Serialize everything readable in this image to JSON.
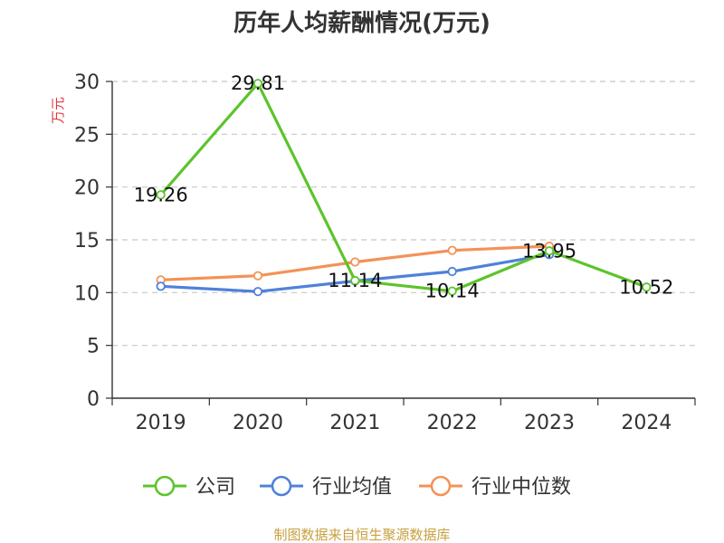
{
  "chart_data": {
    "type": "line",
    "title": "历年人均薪酬情况(万元)",
    "ylabel": "万元",
    "xlabel": "",
    "categories": [
      "2019",
      "2020",
      "2021",
      "2022",
      "2023",
      "2024"
    ],
    "yticks": [
      "0",
      "5",
      "10",
      "15",
      "20",
      "25",
      "30"
    ],
    "ylim": [
      0,
      30
    ],
    "grid": true,
    "legend_position": "bottom",
    "series": [
      {
        "name": "公司",
        "color": "#5cc42b",
        "values": [
          19.26,
          29.81,
          11.14,
          10.14,
          13.95,
          10.52
        ],
        "labels": [
          "19.26",
          "29.81",
          "11.14",
          "10.14",
          "13.95",
          "10.52"
        ]
      },
      {
        "name": "行业均值",
        "color": "#4f81d9",
        "values": [
          10.6,
          10.1,
          11.1,
          12.0,
          13.6,
          null
        ]
      },
      {
        "name": "行业中位数",
        "color": "#f39257",
        "values": [
          11.2,
          11.6,
          12.9,
          14.0,
          14.4,
          null
        ]
      }
    ]
  },
  "source": "制图数据来自恒生聚源数据库"
}
